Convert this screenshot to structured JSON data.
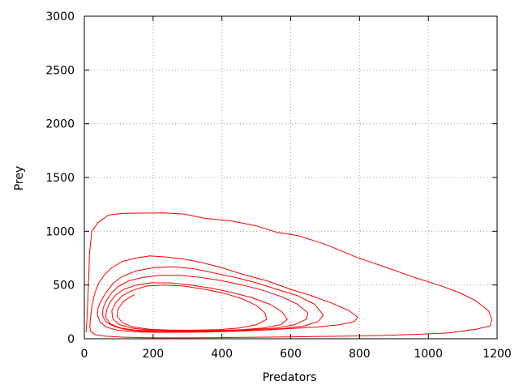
{
  "chart_data": {
    "type": "line",
    "title": "",
    "xlabel": "Predators",
    "ylabel": "Prey",
    "xlim": [
      0,
      1200
    ],
    "ylim": [
      0,
      3000
    ],
    "xticks": [
      0,
      200,
      400,
      600,
      800,
      1000,
      1200
    ],
    "yticks": [
      0,
      500,
      1000,
      1500,
      2000,
      2500,
      3000
    ],
    "grid": true,
    "legend": "none",
    "series": [
      {
        "color": "#ff0000",
        "points": [
          [
            5,
            60
          ],
          [
            8,
            200
          ],
          [
            12,
            500
          ],
          [
            15,
            800
          ],
          [
            22,
            1000
          ],
          [
            40,
            1080
          ],
          [
            70,
            1150
          ],
          [
            110,
            1165
          ],
          [
            160,
            1168
          ],
          [
            230,
            1170
          ],
          [
            290,
            1160
          ],
          [
            350,
            1120
          ],
          [
            430,
            1095
          ],
          [
            500,
            1050
          ],
          [
            560,
            990
          ],
          [
            620,
            960
          ],
          [
            700,
            880
          ],
          [
            790,
            760
          ],
          [
            880,
            660
          ],
          [
            960,
            570
          ],
          [
            1030,
            500
          ],
          [
            1090,
            430
          ],
          [
            1140,
            350
          ],
          [
            1175,
            260
          ],
          [
            1185,
            180
          ],
          [
            1180,
            120
          ],
          [
            1140,
            90
          ],
          [
            1060,
            55
          ],
          [
            960,
            40
          ],
          [
            860,
            30
          ],
          [
            760,
            25
          ],
          [
            660,
            20
          ],
          [
            560,
            16
          ],
          [
            460,
            13
          ],
          [
            360,
            10
          ],
          [
            260,
            8
          ],
          [
            180,
            10
          ],
          [
            110,
            15
          ],
          [
            60,
            25
          ],
          [
            30,
            40
          ],
          [
            18,
            70
          ],
          [
            16,
            120
          ],
          [
            18,
            200
          ],
          [
            22,
            300
          ],
          [
            30,
            420
          ],
          [
            42,
            520
          ],
          [
            60,
            600
          ],
          [
            80,
            660
          ],
          [
            110,
            720
          ],
          [
            150,
            750
          ],
          [
            190,
            770
          ],
          [
            240,
            760
          ],
          [
            290,
            740
          ],
          [
            340,
            710
          ],
          [
            400,
            660
          ],
          [
            460,
            600
          ],
          [
            530,
            540
          ],
          [
            600,
            460
          ],
          [
            660,
            400
          ],
          [
            720,
            330
          ],
          [
            770,
            260
          ],
          [
            795,
            200
          ],
          [
            785,
            160
          ],
          [
            740,
            130
          ],
          [
            680,
            110
          ],
          [
            600,
            95
          ],
          [
            520,
            80
          ],
          [
            440,
            70
          ],
          [
            360,
            62
          ],
          [
            280,
            60
          ],
          [
            200,
            60
          ],
          [
            140,
            65
          ],
          [
            95,
            80
          ],
          [
            62,
            110
          ],
          [
            45,
            160
          ],
          [
            38,
            220
          ],
          [
            40,
            290
          ],
          [
            50,
            360
          ],
          [
            65,
            440
          ],
          [
            85,
            520
          ],
          [
            110,
            580
          ],
          [
            150,
            630
          ],
          [
            200,
            660
          ],
          [
            260,
            670
          ],
          [
            320,
            650
          ],
          [
            380,
            610
          ],
          [
            440,
            570
          ],
          [
            500,
            520
          ],
          [
            560,
            460
          ],
          [
            620,
            400
          ],
          [
            670,
            320
          ],
          [
            695,
            220
          ],
          [
            680,
            160
          ],
          [
            640,
            120
          ],
          [
            580,
            95
          ],
          [
            510,
            80
          ],
          [
            440,
            70
          ],
          [
            370,
            65
          ],
          [
            300,
            63
          ],
          [
            230,
            64
          ],
          [
            170,
            70
          ],
          [
            120,
            85
          ],
          [
            85,
            115
          ],
          [
            62,
            160
          ],
          [
            52,
            220
          ],
          [
            55,
            290
          ],
          [
            65,
            360
          ],
          [
            80,
            430
          ],
          [
            100,
            490
          ],
          [
            130,
            540
          ],
          [
            170,
            570
          ],
          [
            220,
            590
          ],
          [
            280,
            590
          ],
          [
            340,
            570
          ],
          [
            400,
            540
          ],
          [
            460,
            500
          ],
          [
            520,
            450
          ],
          [
            575,
            390
          ],
          [
            620,
            320
          ],
          [
            650,
            240
          ],
          [
            645,
            180
          ],
          [
            610,
            130
          ],
          [
            560,
            100
          ],
          [
            490,
            85
          ],
          [
            420,
            75
          ],
          [
            350,
            70
          ],
          [
            280,
            68
          ],
          [
            210,
            70
          ],
          [
            150,
            80
          ],
          [
            105,
            100
          ],
          [
            75,
            140
          ],
          [
            62,
            200
          ],
          [
            65,
            270
          ],
          [
            75,
            340
          ],
          [
            92,
            410
          ],
          [
            115,
            460
          ],
          [
            150,
            500
          ],
          [
            195,
            520
          ],
          [
            250,
            520
          ],
          [
            310,
            500
          ],
          [
            370,
            470
          ],
          [
            430,
            430
          ],
          [
            490,
            380
          ],
          [
            540,
            320
          ],
          [
            575,
            250
          ],
          [
            590,
            180
          ],
          [
            570,
            130
          ],
          [
            520,
            100
          ],
          [
            460,
            85
          ],
          [
            390,
            78
          ],
          [
            320,
            75
          ],
          [
            250,
            76
          ],
          [
            185,
            82
          ],
          [
            135,
            100
          ],
          [
            100,
            135
          ],
          [
            82,
            190
          ],
          [
            80,
            260
          ],
          [
            90,
            330
          ],
          [
            110,
            400
          ],
          [
            140,
            450
          ],
          [
            180,
            490
          ],
          [
            230,
            500
          ],
          [
            290,
            490
          ],
          [
            350,
            460
          ],
          [
            410,
            420
          ],
          [
            460,
            370
          ],
          [
            500,
            310
          ],
          [
            525,
            240
          ],
          [
            530,
            180
          ],
          [
            500,
            130
          ],
          [
            450,
            100
          ],
          [
            390,
            85
          ],
          [
            320,
            80
          ],
          [
            250,
            80
          ],
          [
            190,
            88
          ],
          [
            140,
            110
          ],
          [
            110,
            150
          ],
          [
            95,
            210
          ],
          [
            98,
            280
          ],
          [
            115,
            350
          ],
          [
            145,
            410
          ]
        ]
      }
    ]
  }
}
